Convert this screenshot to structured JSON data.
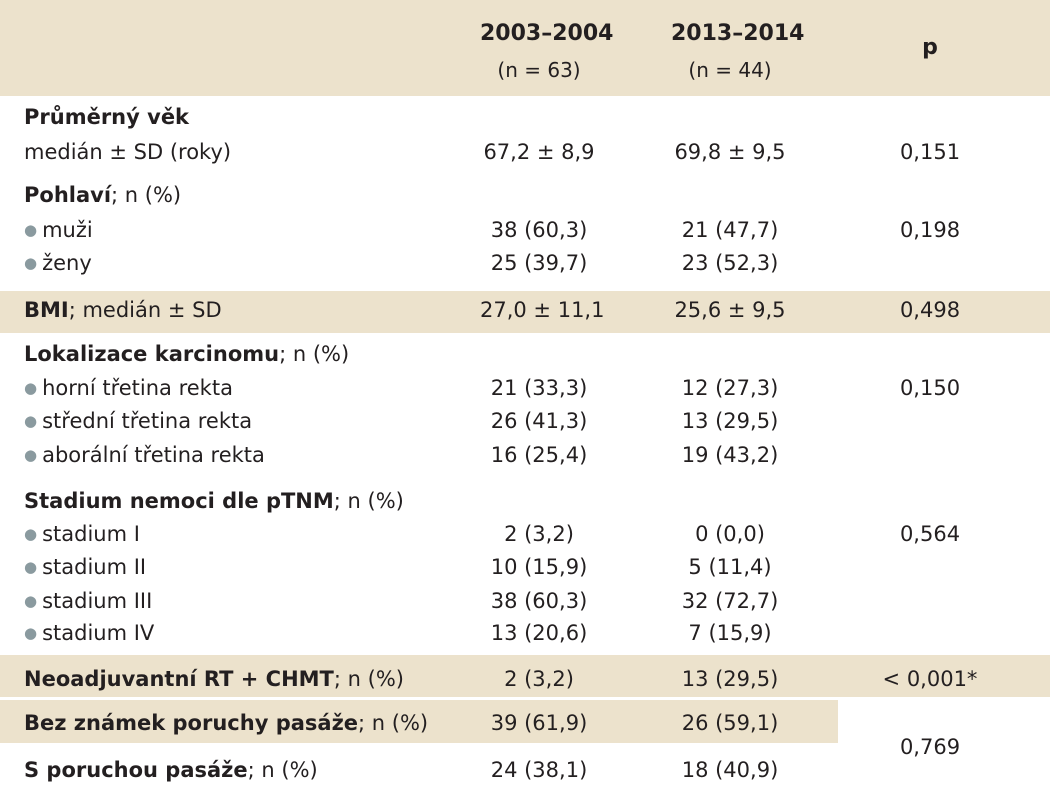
{
  "table": {
    "headers": {
      "col1": "2003–2004",
      "col1_n": "(n = 63)",
      "col2": "2013–2014",
      "col2_n": "(n = 44)",
      "p": "p"
    },
    "sections": [
      {
        "title": "Průměrný věk",
        "rows": [
          {
            "label": "medián ± SD (roky)",
            "v1": "67,2 ± 8,9",
            "v2": "69,8 ± 9,5",
            "p": "0,151"
          }
        ]
      },
      {
        "title": "Pohlaví",
        "suffix": "; n (%)",
        "rows": [
          {
            "label": "muži",
            "v1": "38 (60,3)",
            "v2": "21 (47,7)",
            "p": "0,198"
          },
          {
            "label": "ženy",
            "v1": "25 (39,7)",
            "v2": "23 (52,3)"
          }
        ]
      },
      {
        "title": "BMI",
        "suffix": "; medián ± SD",
        "v1": "27,0 ± 11,1",
        "v2": "25,6 ± 9,5",
        "p": "0,498"
      },
      {
        "title": "Lokalizace karcinomu",
        "suffix": "; n (%)",
        "rows": [
          {
            "label": "horní třetina rekta",
            "v1": "21 (33,3)",
            "v2": "12 (27,3)",
            "p": "0,150"
          },
          {
            "label": "střední třetina rekta",
            "v1": "26 (41,3)",
            "v2": "13 (29,5)"
          },
          {
            "label": "aborální třetina rekta",
            "v1": "16 (25,4)",
            "v2": "19 (43,2)"
          }
        ]
      },
      {
        "title": "Stadium nemoci dle pTNM",
        "suffix": "; n (%)",
        "rows": [
          {
            "label": "stadium I",
            "v1": "2 (3,2)",
            "v2": "0 (0,0)",
            "p": "0,564"
          },
          {
            "label": "stadium II",
            "v1": "10 (15,9)",
            "v2": "5 (11,4)"
          },
          {
            "label": "stadium III",
            "v1": "38 (60,3)",
            "v2": "32 (72,7)"
          },
          {
            "label": "stadium IV",
            "v1": "13 (20,6)",
            "v2": "7 (15,9)"
          }
        ]
      },
      {
        "title": "Neoadjuvantní RT + CHMT",
        "suffix": "; n (%)",
        "v1": "2 (3,2)",
        "v2": "13 (29,5)",
        "p": "< 0,001*"
      },
      {
        "title": "Bez známek poruchy pasáže",
        "suffix": "; n (%)",
        "v1": "39 (61,9)",
        "v2": "26 (59,1)"
      },
      {
        "title": "S poruchou pasáže",
        "suffix": "; n (%)",
        "v1": "24 (38,1)",
        "v2": "18 (40,9)"
      }
    ],
    "merged_p": "0,769"
  },
  "colors": {
    "band_fill": "#ece2cc",
    "bullet": "#8a9a9f",
    "text": "#231f20",
    "background": "#ffffff"
  }
}
